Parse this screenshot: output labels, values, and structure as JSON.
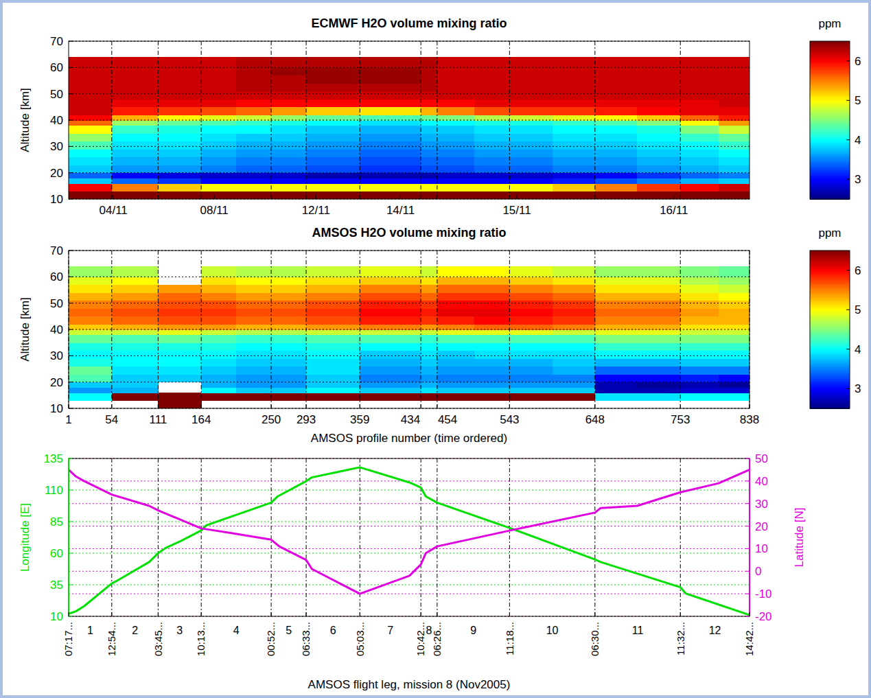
{
  "chart_data": [
    {
      "type": "heatmap",
      "title": "ECMWF H2O volume mixing ratio",
      "ylabel": "Altitude [km]",
      "xlim": [
        1,
        838
      ],
      "xticks": [
        {
          "value": 56,
          "label": "04/11"
        },
        {
          "value": 180,
          "label": "08/11"
        },
        {
          "value": 305,
          "label": "12/11"
        },
        {
          "value": 409,
          "label": "14/11"
        },
        {
          "value": 552,
          "label": "15/11"
        },
        {
          "value": 745,
          "label": "16/11"
        }
      ],
      "boundaries": [
        54,
        111,
        164,
        250,
        293,
        359,
        434,
        454,
        543,
        648,
        753
      ],
      "ylim": [
        10,
        70
      ],
      "yticks": [
        10,
        20,
        30,
        40,
        50,
        60,
        70
      ],
      "grid": true,
      "x_edges": [
        1,
        54,
        111,
        164,
        207,
        250,
        293,
        359,
        434,
        454,
        500,
        543,
        596,
        648,
        700,
        753,
        800,
        838
      ],
      "y_edges": [
        10,
        13,
        16,
        18,
        20,
        23,
        26,
        29,
        32,
        35,
        38,
        40,
        42,
        45,
        48,
        51,
        54,
        57,
        60,
        64
      ],
      "z": [
        [
          6.5,
          6.5,
          6.5,
          6.5,
          6.5,
          6.5,
          6.5,
          6.5,
          6.5,
          6.5,
          6.5,
          6.5,
          6.5,
          6.5,
          6.5,
          6.5,
          6.5
        ],
        [
          6.0,
          5.5,
          5.2,
          5.0,
          5.0,
          5.0,
          5.0,
          5.0,
          5.0,
          5.0,
          5.0,
          5.0,
          5.2,
          5.5,
          5.8,
          6.0,
          6.2
        ],
        [
          3.8,
          3.4,
          3.2,
          3.0,
          3.0,
          3.0,
          3.0,
          3.0,
          3.0,
          3.0,
          3.0,
          3.0,
          3.1,
          3.3,
          3.5,
          3.7,
          3.8
        ],
        [
          3.4,
          3.0,
          2.9,
          2.8,
          2.8,
          2.8,
          2.7,
          2.7,
          2.7,
          2.8,
          2.8,
          2.8,
          2.9,
          3.0,
          3.2,
          3.4,
          3.5
        ],
        [
          3.8,
          3.6,
          3.6,
          3.5,
          3.4,
          3.4,
          3.3,
          3.2,
          3.3,
          3.3,
          3.4,
          3.4,
          3.5,
          3.5,
          3.6,
          3.7,
          3.8
        ],
        [
          3.9,
          3.7,
          3.7,
          3.6,
          3.5,
          3.5,
          3.4,
          3.3,
          3.4,
          3.4,
          3.5,
          3.5,
          3.6,
          3.6,
          3.7,
          3.8,
          3.9
        ],
        [
          4.0,
          3.8,
          3.8,
          3.7,
          3.6,
          3.6,
          3.5,
          3.4,
          3.5,
          3.5,
          3.6,
          3.6,
          3.7,
          3.7,
          3.8,
          3.9,
          4.0
        ],
        [
          4.3,
          3.9,
          3.9,
          3.8,
          3.7,
          3.7,
          3.6,
          3.5,
          3.6,
          3.6,
          3.7,
          3.7,
          3.8,
          3.8,
          3.9,
          4.0,
          4.2
        ],
        [
          4.6,
          4.0,
          4.0,
          3.9,
          3.8,
          3.8,
          3.7,
          3.6,
          3.7,
          3.7,
          3.8,
          3.8,
          3.9,
          3.9,
          4.0,
          4.2,
          4.4
        ],
        [
          5.0,
          4.2,
          4.1,
          4.0,
          4.0,
          3.9,
          3.8,
          3.7,
          3.8,
          3.8,
          3.9,
          3.9,
          4.0,
          4.0,
          4.1,
          4.5,
          4.8
        ],
        [
          5.6,
          4.6,
          4.4,
          4.3,
          4.2,
          4.1,
          4.0,
          3.9,
          4.0,
          4.0,
          4.1,
          4.1,
          4.2,
          4.3,
          4.5,
          5.0,
          5.4
        ],
        [
          6.0,
          5.3,
          5.0,
          4.9,
          4.8,
          4.6,
          4.4,
          4.3,
          4.4,
          4.5,
          4.7,
          4.8,
          4.9,
          5.0,
          5.2,
          5.6,
          5.9
        ],
        [
          6.2,
          5.9,
          5.8,
          5.7,
          5.6,
          5.4,
          5.2,
          5.1,
          5.3,
          5.5,
          5.7,
          5.8,
          5.8,
          5.9,
          6.0,
          6.1,
          6.1
        ],
        [
          6.2,
          6.1,
          6.1,
          6.1,
          6.0,
          6.0,
          6.0,
          6.0,
          6.0,
          6.0,
          6.1,
          6.1,
          6.1,
          6.1,
          6.1,
          6.1,
          6.2
        ],
        [
          6.2,
          6.2,
          6.2,
          6.2,
          6.2,
          6.2,
          6.2,
          6.2,
          6.2,
          6.2,
          6.2,
          6.2,
          6.2,
          6.2,
          6.2,
          6.2,
          6.2
        ],
        [
          6.2,
          6.2,
          6.2,
          6.2,
          6.3,
          6.3,
          6.3,
          6.3,
          6.3,
          6.2,
          6.2,
          6.2,
          6.2,
          6.2,
          6.2,
          6.2,
          6.2
        ],
        [
          6.2,
          6.2,
          6.2,
          6.2,
          6.3,
          6.3,
          6.4,
          6.4,
          6.3,
          6.2,
          6.2,
          6.2,
          6.2,
          6.2,
          6.2,
          6.2,
          6.2
        ],
        [
          6.2,
          6.2,
          6.2,
          6.2,
          6.3,
          6.4,
          6.4,
          6.4,
          6.3,
          6.2,
          6.2,
          6.2,
          6.2,
          6.2,
          6.2,
          6.2,
          6.2
        ],
        [
          6.2,
          6.2,
          6.2,
          6.2,
          6.3,
          6.3,
          6.3,
          6.3,
          6.3,
          6.2,
          6.2,
          6.2,
          6.2,
          6.2,
          6.2,
          6.2,
          6.2
        ]
      ],
      "colorbar": {
        "label": "ppm",
        "range": [
          2.5,
          6.5
        ],
        "ticks": [
          3,
          4,
          5,
          6
        ]
      }
    },
    {
      "type": "heatmap",
      "title": "AMSOS H2O volume mixing ratio",
      "ylabel": "Altitude [km]",
      "xlabel": "AMSOS profile number (time ordered)",
      "xlim": [
        1,
        838
      ],
      "xticks": [
        1,
        54,
        111,
        164,
        250,
        293,
        359,
        434,
        454,
        543,
        648,
        753,
        838
      ],
      "ylim": [
        10,
        70
      ],
      "yticks": [
        10,
        20,
        30,
        40,
        50,
        60,
        70
      ],
      "grid": true,
      "x_edges": [
        1,
        54,
        111,
        164,
        207,
        250,
        293,
        359,
        434,
        454,
        500,
        543,
        596,
        648,
        700,
        753,
        800,
        838
      ],
      "y_edges": [
        10,
        13,
        16,
        18,
        20,
        23,
        26,
        29,
        32,
        35,
        38,
        40,
        42,
        45,
        48,
        51,
        54,
        57,
        60,
        64
      ],
      "z": [
        [
          null,
          null,
          6.5,
          null,
          null,
          null,
          null,
          null,
          null,
          null,
          null,
          null,
          null,
          null,
          null,
          null,
          null
        ],
        [
          4.0,
          6.5,
          6.5,
          6.5,
          6.5,
          6.5,
          6.5,
          6.5,
          6.5,
          6.5,
          6.5,
          6.5,
          6.5,
          3.9,
          3.9,
          4.0,
          4.0
        ],
        [
          3.6,
          3.7,
          null,
          4.0,
          3.8,
          3.8,
          4.0,
          3.8,
          3.9,
          3.8,
          3.8,
          3.8,
          3.8,
          2.7,
          2.7,
          2.8,
          2.8
        ],
        [
          3.8,
          3.8,
          null,
          3.7,
          3.6,
          3.6,
          3.8,
          3.6,
          3.7,
          3.6,
          3.6,
          3.6,
          3.6,
          2.7,
          2.6,
          2.7,
          2.6
        ],
        [
          4.3,
          3.8,
          3.8,
          3.7,
          3.6,
          3.6,
          3.8,
          3.5,
          3.6,
          3.5,
          3.5,
          3.5,
          3.5,
          3.0,
          3.0,
          3.1,
          3.0
        ],
        [
          4.4,
          3.9,
          3.9,
          3.8,
          3.7,
          3.7,
          3.9,
          3.6,
          3.7,
          3.6,
          3.6,
          3.6,
          3.7,
          3.4,
          3.4,
          3.5,
          3.5
        ],
        [
          4.1,
          4.0,
          4.0,
          3.9,
          3.8,
          3.8,
          3.9,
          3.7,
          3.8,
          3.7,
          3.7,
          3.7,
          3.8,
          3.7,
          3.7,
          3.8,
          3.8
        ],
        [
          4.0,
          4.0,
          4.0,
          4.0,
          3.9,
          3.9,
          4.0,
          3.8,
          3.9,
          3.8,
          3.9,
          3.9,
          3.9,
          4.0,
          4.0,
          4.0,
          4.0
        ],
        [
          4.1,
          4.1,
          4.1,
          4.1,
          4.0,
          4.0,
          4.1,
          4.0,
          4.0,
          4.0,
          4.0,
          4.0,
          4.0,
          4.2,
          4.2,
          4.2,
          4.2
        ],
        [
          4.4,
          4.3,
          4.4,
          4.3,
          4.2,
          4.2,
          4.3,
          4.3,
          4.2,
          4.3,
          4.3,
          4.3,
          4.3,
          4.5,
          4.5,
          4.5,
          4.5
        ],
        [
          4.8,
          4.8,
          4.9,
          4.8,
          4.7,
          4.7,
          4.8,
          4.8,
          4.8,
          4.9,
          4.9,
          4.9,
          4.8,
          4.9,
          4.9,
          4.8,
          4.8
        ],
        [
          5.2,
          5.3,
          5.4,
          5.4,
          5.3,
          5.3,
          5.4,
          5.5,
          5.4,
          5.5,
          5.6,
          5.6,
          5.5,
          5.3,
          5.3,
          5.1,
          5.1
        ],
        [
          5.5,
          5.6,
          5.7,
          5.7,
          5.6,
          5.6,
          5.7,
          5.9,
          5.8,
          5.9,
          6.0,
          5.9,
          5.8,
          5.5,
          5.5,
          5.3,
          5.3
        ],
        [
          5.6,
          5.7,
          5.8,
          5.8,
          5.7,
          5.7,
          5.8,
          6.0,
          5.9,
          6.1,
          6.1,
          6.0,
          5.9,
          5.6,
          5.6,
          5.4,
          5.3
        ],
        [
          5.5,
          5.6,
          5.7,
          5.7,
          5.6,
          5.6,
          5.7,
          5.9,
          5.8,
          6.0,
          6.0,
          5.9,
          5.8,
          5.5,
          5.5,
          5.3,
          5.2
        ],
        [
          5.3,
          5.4,
          5.6,
          5.5,
          5.4,
          5.4,
          5.5,
          5.7,
          5.6,
          5.8,
          5.8,
          5.7,
          5.6,
          5.3,
          5.3,
          5.1,
          5.0
        ],
        [
          5.1,
          5.2,
          5.4,
          5.3,
          5.2,
          5.2,
          5.3,
          5.5,
          5.4,
          5.6,
          5.6,
          5.5,
          5.4,
          5.1,
          5.1,
          4.9,
          4.8
        ],
        [
          4.9,
          5.0,
          null,
          5.1,
          5.0,
          5.0,
          5.1,
          5.2,
          5.1,
          5.3,
          5.3,
          5.2,
          5.1,
          4.9,
          4.9,
          4.7,
          4.6
        ],
        [
          4.6,
          4.7,
          null,
          4.8,
          4.7,
          4.7,
          4.8,
          4.9,
          4.8,
          5.0,
          5.0,
          4.9,
          4.8,
          4.6,
          4.6,
          4.5,
          4.4
        ]
      ],
      "colorbar": {
        "label": "ppm",
        "range": [
          2.5,
          6.5
        ],
        "ticks": [
          3,
          4,
          5,
          6
        ]
      }
    },
    {
      "type": "line",
      "xlabel": "AMSOS flight leg, mission 8 (Nov2005)",
      "xlim": [
        1,
        838
      ],
      "xticks": [
        {
          "value": 1,
          "label": "07:17..."
        },
        {
          "value": 54,
          "label": "12:54..."
        },
        {
          "value": 111,
          "label": "03:45..."
        },
        {
          "value": 164,
          "label": "10:13..."
        },
        {
          "value": 250,
          "label": "00:52..."
        },
        {
          "value": 293,
          "label": "06:33..."
        },
        {
          "value": 359,
          "label": "05:03..."
        },
        {
          "value": 434,
          "label": "10:42..."
        },
        {
          "value": 454,
          "label": "06:26..."
        },
        {
          "value": 543,
          "label": "11:18..."
        },
        {
          "value": 648,
          "label": "06:30..."
        },
        {
          "value": 753,
          "label": "11:32..."
        },
        {
          "value": 838,
          "label": "14:42..."
        }
      ],
      "legs": [
        "1",
        "2",
        "3",
        "4",
        "5",
        "6",
        "7",
        "8",
        "9",
        "10",
        "11",
        "12"
      ],
      "ylabel": "Longitude [E]",
      "ylim": [
        10,
        135
      ],
      "yticks": [
        10,
        35,
        60,
        85,
        110,
        135
      ],
      "y2label": "Latitude [N]",
      "y2lim": [
        -20,
        50
      ],
      "y2ticks": [
        -20,
        -10,
        0,
        10,
        20,
        30,
        40,
        50
      ],
      "grid": true,
      "series": [
        {
          "color": "#00e000",
          "x": [
            1,
            10,
            20,
            54,
            60,
            100,
            111,
            120,
            140,
            164,
            170,
            250,
            258,
            293,
            300,
            359,
            420,
            434,
            440,
            454,
            543,
            648,
            655,
            753,
            760,
            838
          ],
          "values": [
            12,
            14,
            18,
            36,
            38,
            53,
            60,
            64,
            70,
            78,
            82,
            100,
            105,
            117,
            120,
            128,
            116,
            112,
            105,
            100,
            80,
            55,
            53,
            33,
            28,
            11
          ]
        },
        {
          "color": "#e000e0",
          "axis": "y2",
          "x": [
            1,
            10,
            20,
            54,
            100,
            111,
            164,
            200,
            250,
            260,
            293,
            300,
            359,
            420,
            434,
            440,
            454,
            543,
            648,
            655,
            700,
            753,
            800,
            838
          ],
          "values": [
            45,
            42,
            40,
            34,
            29,
            27,
            19,
            17,
            14,
            11,
            5,
            1,
            -10,
            -2,
            3,
            8,
            11,
            18,
            26,
            28,
            29,
            35,
            39,
            45
          ]
        }
      ]
    }
  ]
}
